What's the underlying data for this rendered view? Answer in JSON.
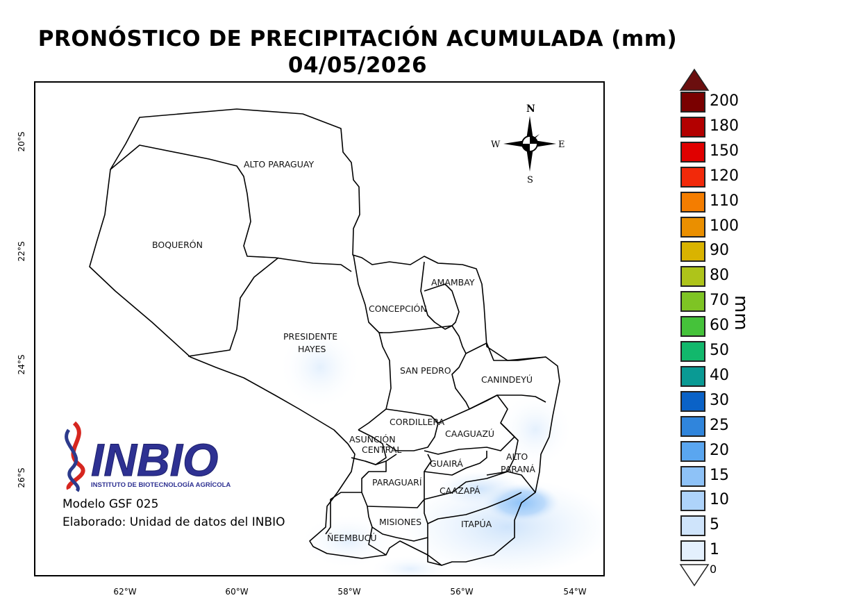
{
  "title": {
    "line1": "PRONÓSTICO DE PRECIPITACIÓN ACUMULADA (mm)",
    "line2": "04/05/2026"
  },
  "map": {
    "departments": [
      "ALTO PARAGUAY",
      "BOQUERÓN",
      "PRESIDENTE",
      "HAYES",
      "CONCEPCIÓN",
      "AMAMBAY",
      "SAN PEDRO",
      "CANINDEYÚ",
      "CORDILLERA",
      "ASUNCIÓN",
      "CENTRAL",
      "CAAGUAZÚ",
      "ALTO",
      "PARANÁ",
      "GUAIRÁ",
      "PARAGUARÍ",
      "CAAZAPÁ",
      "MISIONES",
      "ITAPÚA",
      "ÑEEMBUCÚ"
    ],
    "x_ticks": [
      "62°W",
      "60°W",
      "58°W",
      "56°W",
      "54°W"
    ],
    "y_ticks": [
      "20°S",
      "22°S",
      "24°S",
      "26°S"
    ],
    "compass": {
      "n": "N",
      "s": "S",
      "e": "E",
      "w": "W"
    }
  },
  "logo": {
    "name": "INBIO",
    "subtitle": "INSTITUTO DE BIOTECNOLOGÍA AGRÍCOLA"
  },
  "credits": {
    "model": "Modelo GSF 025",
    "author": "Elaborado: Unidad de datos del INBIO"
  },
  "legend": {
    "unit": "mm",
    "zero_label": "0",
    "items": [
      {
        "label": "200",
        "color": "#7a0000"
      },
      {
        "label": "180",
        "color": "#b30000"
      },
      {
        "label": "150",
        "color": "#e00000"
      },
      {
        "label": "120",
        "color": "#f2290a"
      },
      {
        "label": "110",
        "color": "#f47d00"
      },
      {
        "label": "100",
        "color": "#ea8f00"
      },
      {
        "label": "90",
        "color": "#d9b300"
      },
      {
        "label": "80",
        "color": "#aec41a"
      },
      {
        "label": "70",
        "color": "#7ec424"
      },
      {
        "label": "60",
        "color": "#45c23a"
      },
      {
        "label": "50",
        "color": "#12b86c"
      },
      {
        "label": "40",
        "color": "#0a9a94"
      },
      {
        "label": "30",
        "color": "#0a62c7"
      },
      {
        "label": "25",
        "color": "#3085dc"
      },
      {
        "label": "20",
        "color": "#5aa6f0"
      },
      {
        "label": "15",
        "color": "#8ec2f7"
      },
      {
        "label": "10",
        "color": "#aed3fa"
      },
      {
        "label": "5",
        "color": "#cfe4fb"
      },
      {
        "label": "1",
        "color": "#e4f0fd"
      }
    ],
    "top_arrow_color": "#6b0f0f"
  }
}
